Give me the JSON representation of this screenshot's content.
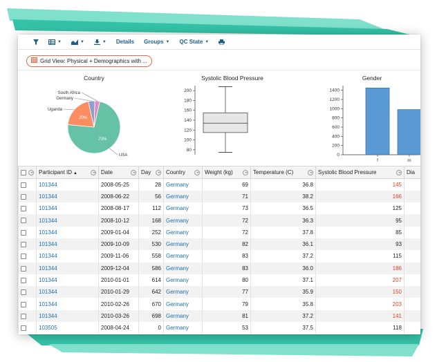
{
  "toolbar": {
    "details_label": "Details",
    "groups_label": "Groups",
    "qc_state_label": "QC State",
    "filter_icon": "filter-icon",
    "grid_icon": "grid-view-icon",
    "charts_icon": "chart-icon",
    "export_icon": "download-icon",
    "print_icon": "print-icon"
  },
  "view": {
    "label": "Grid View: Physical + Demographics with ..."
  },
  "charts": [
    {
      "title": "Country",
      "chart_data": {
        "type": "pie",
        "title": "Country",
        "slices": [
          {
            "label": "USA",
            "value": 73,
            "color": "#66c2a5",
            "text": "73%"
          },
          {
            "label": "Uganda",
            "value": 20,
            "color": "#fc8d62",
            "text": "20%"
          },
          {
            "label": "Germany",
            "value": 4,
            "color": "#8da0cb",
            "text": ""
          },
          {
            "label": "South Africa",
            "value": 3,
            "color": "#e78ac3",
            "text": ""
          }
        ]
      }
    },
    {
      "title": "Systolic Blood Pressure",
      "chart_data": {
        "type": "box",
        "title": "Systolic Blood Pressure",
        "ylim": [
          70,
          210
        ],
        "yticks": [
          80,
          100,
          120,
          140,
          160,
          180,
          200
        ],
        "min": 75,
        "q1": 115,
        "median": 134,
        "q3": 155,
        "max": 208
      }
    },
    {
      "title": "Gender",
      "chart_data": {
        "type": "bar",
        "title": "Gender",
        "categories": [
          "f",
          "m"
        ],
        "values": [
          1450,
          980
        ],
        "ylim": [
          0,
          1500
        ],
        "yticks": [
          0,
          200,
          400,
          600,
          800,
          1000,
          1200,
          1400
        ],
        "color": "#5b9bd5"
      }
    }
  ],
  "table": {
    "headers": [
      "Participant ID",
      "Date",
      "Day",
      "Country",
      "Weight (kg)",
      "Temperature (C)",
      "Systolic Blood Pressure",
      "Dia"
    ],
    "rows": [
      {
        "id": "101344",
        "date": "2008-05-25",
        "day": "28",
        "country": "Germany",
        "weight": "69",
        "temp": "36.8",
        "sbp": "145",
        "sbp_high": true
      },
      {
        "id": "101344",
        "date": "2008-06-22",
        "day": "56",
        "country": "Germany",
        "weight": "71",
        "temp": "38.2",
        "sbp": "166",
        "sbp_high": true
      },
      {
        "id": "101344",
        "date": "2008-08-17",
        "day": "112",
        "country": "Germany",
        "weight": "73",
        "temp": "36.5",
        "sbp": "125",
        "sbp_high": false
      },
      {
        "id": "101344",
        "date": "2008-10-12",
        "day": "168",
        "country": "Germany",
        "weight": "72",
        "temp": "36.3",
        "sbp": "95",
        "sbp_high": false
      },
      {
        "id": "101344",
        "date": "2009-01-04",
        "day": "252",
        "country": "Germany",
        "weight": "72",
        "temp": "37.8",
        "sbp": "85",
        "sbp_high": false
      },
      {
        "id": "101344",
        "date": "2009-10-09",
        "day": "530",
        "country": "Germany",
        "weight": "82",
        "temp": "36.1",
        "sbp": "93",
        "sbp_high": false
      },
      {
        "id": "101344",
        "date": "2009-11-06",
        "day": "558",
        "country": "Germany",
        "weight": "83",
        "temp": "37.2",
        "sbp": "115",
        "sbp_high": false
      },
      {
        "id": "101344",
        "date": "2009-12-04",
        "day": "586",
        "country": "Germany",
        "weight": "83",
        "temp": "36.0",
        "sbp": "186",
        "sbp_high": true
      },
      {
        "id": "101344",
        "date": "2010-01-01",
        "day": "614",
        "country": "Germany",
        "weight": "80",
        "temp": "37.1",
        "sbp": "207",
        "sbp_high": true
      },
      {
        "id": "101344",
        "date": "2010-01-29",
        "day": "642",
        "country": "Germany",
        "weight": "77",
        "temp": "35.9",
        "sbp": "150",
        "sbp_high": true
      },
      {
        "id": "101344",
        "date": "2010-02-26",
        "day": "670",
        "country": "Germany",
        "weight": "79",
        "temp": "35.8",
        "sbp": "203",
        "sbp_high": true
      },
      {
        "id": "101344",
        "date": "2010-03-26",
        "day": "698",
        "country": "Germany",
        "weight": "81",
        "temp": "37.2",
        "sbp": "141",
        "sbp_high": true
      },
      {
        "id": "103505",
        "date": "2008-04-24",
        "day": "0",
        "country": "Germany",
        "weight": "53",
        "temp": "37.5",
        "sbp": "118",
        "sbp_high": false
      }
    ]
  },
  "colors": {
    "accent": "#1a5e92",
    "link": "#1a6fb0",
    "alert": "#e8401e",
    "ribbon": "#35c3a8",
    "ribbon_light": "#7fe0cc"
  }
}
